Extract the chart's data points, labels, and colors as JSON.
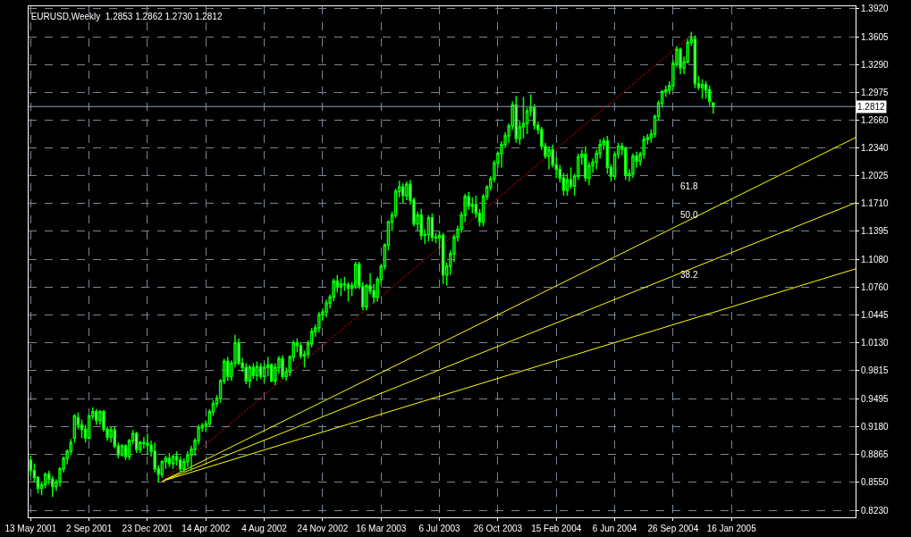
{
  "chart_data": {
    "type": "candlestick",
    "title": "EURUSD,Weekly  1.2853 1.2862 1.2730 1.2812",
    "color": "#00ff00",
    "x": [
      "2001-05-13",
      "2001-05-20",
      "2001-05-27",
      "2001-06-03",
      "2001-06-10",
      "2001-06-17",
      "2001-06-24",
      "2001-07-01",
      "2001-07-08",
      "2001-07-15",
      "2001-07-22",
      "2001-07-29",
      "2001-08-05",
      "2001-08-12",
      "2001-08-19",
      "2001-08-26",
      "2001-09-02",
      "2001-09-09",
      "2001-09-16",
      "2001-09-23",
      "2001-09-30",
      "2001-10-07",
      "2001-10-14",
      "2001-10-21",
      "2001-10-28",
      "2001-11-04",
      "2001-11-11",
      "2001-11-18",
      "2001-11-25",
      "2001-12-02",
      "2001-12-09",
      "2001-12-16",
      "2001-12-23",
      "2001-12-30",
      "2002-01-06",
      "2002-01-13",
      "2002-01-20",
      "2002-01-27",
      "2002-02-03",
      "2002-02-10",
      "2002-02-17",
      "2002-02-24",
      "2002-03-03",
      "2002-03-10",
      "2002-03-17",
      "2002-03-24",
      "2002-03-31",
      "2002-04-07",
      "2002-04-14",
      "2002-04-21",
      "2002-04-28",
      "2002-05-05",
      "2002-05-12",
      "2002-05-19",
      "2002-05-26",
      "2002-06-02",
      "2002-06-09",
      "2002-06-16",
      "2002-06-23",
      "2002-06-30",
      "2002-07-07",
      "2002-07-14",
      "2002-07-21",
      "2002-07-28",
      "2002-08-04",
      "2002-08-11",
      "2002-08-18",
      "2002-08-25",
      "2002-09-01",
      "2002-09-08",
      "2002-09-15",
      "2002-09-22",
      "2002-09-29",
      "2002-10-06",
      "2002-10-13",
      "2002-10-20",
      "2002-10-27",
      "2002-11-03",
      "2002-11-10",
      "2002-11-17",
      "2002-11-24",
      "2002-12-01",
      "2002-12-08",
      "2002-12-15",
      "2002-12-22",
      "2002-12-29",
      "2003-01-05",
      "2003-01-12",
      "2003-01-19",
      "2003-01-26",
      "2003-02-02",
      "2003-02-09",
      "2003-02-16",
      "2003-02-23",
      "2003-03-02",
      "2003-03-09",
      "2003-03-16",
      "2003-03-23",
      "2003-03-30",
      "2003-04-06",
      "2003-04-13",
      "2003-04-20",
      "2003-04-27",
      "2003-05-04",
      "2003-05-11",
      "2003-05-18",
      "2003-05-25",
      "2003-06-01",
      "2003-06-08",
      "2003-06-15",
      "2003-06-22",
      "2003-06-29",
      "2003-07-06",
      "2003-07-13",
      "2003-07-20",
      "2003-07-27",
      "2003-08-03",
      "2003-08-10",
      "2003-08-17",
      "2003-08-24",
      "2003-08-31",
      "2003-09-07",
      "2003-09-14",
      "2003-09-21",
      "2003-09-28",
      "2003-10-05",
      "2003-10-12",
      "2003-10-19",
      "2003-10-26",
      "2003-11-02",
      "2003-11-09",
      "2003-11-16",
      "2003-11-23",
      "2003-11-30",
      "2003-12-07",
      "2003-12-14",
      "2003-12-21",
      "2003-12-28",
      "2004-01-04",
      "2004-01-11",
      "2004-01-18",
      "2004-01-25",
      "2004-02-01",
      "2004-02-08",
      "2004-02-15",
      "2004-02-22",
      "2004-02-29",
      "2004-03-07",
      "2004-03-14",
      "2004-03-21",
      "2004-03-28",
      "2004-04-04",
      "2004-04-11",
      "2004-04-18",
      "2004-04-25",
      "2004-05-02",
      "2004-05-09",
      "2004-05-16",
      "2004-05-23",
      "2004-05-30",
      "2004-06-06",
      "2004-06-13",
      "2004-06-20",
      "2004-06-27",
      "2004-07-04",
      "2004-07-11",
      "2004-07-18",
      "2004-07-25",
      "2004-08-01",
      "2004-08-08",
      "2004-08-15",
      "2004-08-22",
      "2004-08-29",
      "2004-09-05",
      "2004-09-12",
      "2004-09-19",
      "2004-09-26",
      "2004-10-03",
      "2004-10-10",
      "2004-10-17",
      "2004-10-24",
      "2004-10-31",
      "2004-11-07",
      "2004-11-14",
      "2004-11-21",
      "2004-11-28",
      "2004-12-05",
      "2004-12-12"
    ],
    "ohlc": [
      [
        0.88,
        0.885,
        0.862,
        0.868
      ],
      [
        0.868,
        0.876,
        0.855,
        0.86
      ],
      [
        0.86,
        0.862,
        0.842,
        0.848
      ],
      [
        0.848,
        0.856,
        0.84,
        0.852
      ],
      [
        0.852,
        0.866,
        0.848,
        0.864
      ],
      [
        0.864,
        0.868,
        0.852,
        0.858
      ],
      [
        0.858,
        0.862,
        0.838,
        0.85
      ],
      [
        0.85,
        0.858,
        0.845,
        0.855
      ],
      [
        0.855,
        0.872,
        0.85,
        0.87
      ],
      [
        0.87,
        0.884,
        0.866,
        0.882
      ],
      [
        0.882,
        0.892,
        0.875,
        0.89
      ],
      [
        0.89,
        0.904,
        0.886,
        0.9
      ],
      [
        0.905,
        0.932,
        0.9,
        0.93
      ],
      [
        0.928,
        0.934,
        0.915,
        0.92
      ],
      [
        0.92,
        0.926,
        0.905,
        0.915
      ],
      [
        0.915,
        0.92,
        0.9,
        0.905
      ],
      [
        0.905,
        0.932,
        0.903,
        0.93
      ],
      [
        0.93,
        0.94,
        0.926,
        0.935
      ],
      [
        0.935,
        0.938,
        0.92,
        0.925
      ],
      [
        0.925,
        0.937,
        0.92,
        0.935
      ],
      [
        0.935,
        0.937,
        0.912,
        0.915
      ],
      [
        0.915,
        0.918,
        0.902,
        0.906
      ],
      [
        0.906,
        0.918,
        0.9,
        0.914
      ],
      [
        0.914,
        0.918,
        0.893,
        0.896
      ],
      [
        0.896,
        0.9,
        0.882,
        0.886
      ],
      [
        0.886,
        0.898,
        0.884,
        0.896
      ],
      [
        0.896,
        0.898,
        0.88,
        0.884
      ],
      [
        0.884,
        0.904,
        0.88,
        0.902
      ],
      [
        0.902,
        0.914,
        0.898,
        0.91
      ],
      [
        0.91,
        0.912,
        0.888,
        0.892
      ],
      [
        0.892,
        0.902,
        0.888,
        0.9
      ],
      [
        0.9,
        0.906,
        0.893,
        0.899
      ],
      [
        0.899,
        0.91,
        0.886,
        0.897
      ],
      [
        0.897,
        0.902,
        0.884,
        0.89
      ],
      [
        0.89,
        0.9,
        0.866,
        0.87
      ],
      [
        0.87,
        0.874,
        0.855,
        0.864
      ],
      [
        0.864,
        0.88,
        0.86,
        0.878
      ],
      [
        0.878,
        0.885,
        0.87,
        0.882
      ],
      [
        0.882,
        0.888,
        0.872,
        0.876
      ],
      [
        0.876,
        0.886,
        0.87,
        0.884
      ],
      [
        0.884,
        0.89,
        0.874,
        0.88
      ],
      [
        0.88,
        0.884,
        0.866,
        0.87
      ],
      [
        0.87,
        0.882,
        0.866,
        0.878
      ],
      [
        0.878,
        0.89,
        0.872,
        0.886
      ],
      [
        0.886,
        0.896,
        0.868,
        0.892
      ],
      [
        0.892,
        0.905,
        0.885,
        0.902
      ],
      [
        0.902,
        0.92,
        0.898,
        0.917
      ],
      [
        0.917,
        0.922,
        0.912,
        0.919
      ],
      [
        0.919,
        0.925,
        0.912,
        0.921
      ],
      [
        0.921,
        0.938,
        0.918,
        0.935
      ],
      [
        0.935,
        0.948,
        0.93,
        0.944
      ],
      [
        0.944,
        0.954,
        0.94,
        0.95
      ],
      [
        0.95,
        0.972,
        0.945,
        0.97
      ],
      [
        0.97,
        0.995,
        0.966,
        0.992
      ],
      [
        0.992,
        0.997,
        0.97,
        0.975
      ],
      [
        0.975,
        0.993,
        0.97,
        0.99
      ],
      [
        0.99,
        1.022,
        0.985,
        1.013
      ],
      [
        1.013,
        1.018,
        0.988,
        0.99
      ],
      [
        0.99,
        0.996,
        0.98,
        0.985
      ],
      [
        0.985,
        0.99,
        0.966,
        0.97
      ],
      [
        0.97,
        0.988,
        0.962,
        0.985
      ],
      [
        0.985,
        0.99,
        0.972,
        0.976
      ],
      [
        0.976,
        0.992,
        0.97,
        0.986
      ],
      [
        0.986,
        0.99,
        0.972,
        0.975
      ],
      [
        0.975,
        0.99,
        0.968,
        0.985
      ],
      [
        0.985,
        0.997,
        0.975,
        0.988
      ],
      [
        0.988,
        0.99,
        0.968,
        0.97
      ],
      [
        0.97,
        0.99,
        0.965,
        0.985
      ],
      [
        0.985,
        0.998,
        0.978,
        0.995
      ],
      [
        0.995,
        0.999,
        0.972,
        0.975
      ],
      [
        0.975,
        0.985,
        0.97,
        0.98
      ],
      [
        0.98,
        0.999,
        0.975,
        0.997
      ],
      [
        0.997,
        1.016,
        0.992,
        1.013
      ],
      [
        1.013,
        1.018,
        1.002,
        1.01
      ],
      [
        1.01,
        1.014,
        0.995,
        0.998
      ],
      [
        0.998,
        1.004,
        0.985,
        1.0
      ],
      [
        1.0,
        1.016,
        0.996,
        1.012
      ],
      [
        1.012,
        1.03,
        1.008,
        1.026
      ],
      [
        1.026,
        1.034,
        1.02,
        1.03
      ],
      [
        1.03,
        1.048,
        1.025,
        1.045
      ],
      [
        1.045,
        1.052,
        1.038,
        1.048
      ],
      [
        1.048,
        1.062,
        1.042,
        1.058
      ],
      [
        1.058,
        1.068,
        1.052,
        1.065
      ],
      [
        1.065,
        1.086,
        1.06,
        1.083
      ],
      [
        1.083,
        1.09,
        1.07,
        1.077
      ],
      [
        1.077,
        1.086,
        1.066,
        1.08
      ],
      [
        1.08,
        1.088,
        1.072,
        1.079
      ],
      [
        1.079,
        1.082,
        1.06,
        1.075
      ],
      [
        1.075,
        1.082,
        1.066,
        1.078
      ],
      [
        1.078,
        1.105,
        1.074,
        1.102
      ],
      [
        1.102,
        1.105,
        1.074,
        1.077
      ],
      [
        1.077,
        1.082,
        1.05,
        1.054
      ],
      [
        1.054,
        1.08,
        1.05,
        1.078
      ],
      [
        1.078,
        1.092,
        1.068,
        1.072
      ],
      [
        1.072,
        1.08,
        1.058,
        1.065
      ],
      [
        1.065,
        1.088,
        1.06,
        1.085
      ],
      [
        1.085,
        1.102,
        1.08,
        1.1
      ],
      [
        1.1,
        1.126,
        1.096,
        1.124
      ],
      [
        1.124,
        1.152,
        1.118,
        1.15
      ],
      [
        1.15,
        1.162,
        1.14,
        1.158
      ],
      [
        1.158,
        1.188,
        1.155,
        1.185
      ],
      [
        1.185,
        1.197,
        1.178,
        1.19
      ],
      [
        1.19,
        1.194,
        1.172,
        1.18
      ],
      [
        1.18,
        1.196,
        1.175,
        1.193
      ],
      [
        1.193,
        1.198,
        1.17,
        1.175
      ],
      [
        1.175,
        1.178,
        1.145,
        1.148
      ],
      [
        1.148,
        1.162,
        1.14,
        1.158
      ],
      [
        1.158,
        1.165,
        1.13,
        1.135
      ],
      [
        1.135,
        1.142,
        1.125,
        1.136
      ],
      [
        1.136,
        1.158,
        1.128,
        1.155
      ],
      [
        1.155,
        1.16,
        1.128,
        1.133
      ],
      [
        1.133,
        1.138,
        1.126,
        1.132
      ],
      [
        1.132,
        1.14,
        1.12,
        1.135
      ],
      [
        1.135,
        1.138,
        1.08,
        1.09
      ],
      [
        1.09,
        1.104,
        1.078,
        1.1
      ],
      [
        1.1,
        1.118,
        1.09,
        1.114
      ],
      [
        1.114,
        1.136,
        1.105,
        1.133
      ],
      [
        1.133,
        1.146,
        1.128,
        1.142
      ],
      [
        1.142,
        1.162,
        1.138,
        1.158
      ],
      [
        1.158,
        1.182,
        1.15,
        1.179
      ],
      [
        1.179,
        1.184,
        1.164,
        1.168
      ],
      [
        1.168,
        1.178,
        1.16,
        1.17
      ],
      [
        1.17,
        1.18,
        1.155,
        1.16
      ],
      [
        1.16,
        1.165,
        1.145,
        1.15
      ],
      [
        1.15,
        1.182,
        1.145,
        1.179
      ],
      [
        1.179,
        1.192,
        1.175,
        1.19
      ],
      [
        1.19,
        1.202,
        1.186,
        1.199
      ],
      [
        1.199,
        1.22,
        1.195,
        1.217
      ],
      [
        1.217,
        1.23,
        1.212,
        1.228
      ],
      [
        1.228,
        1.242,
        1.212,
        1.238
      ],
      [
        1.238,
        1.252,
        1.234,
        1.248
      ],
      [
        1.248,
        1.262,
        1.24,
        1.259
      ],
      [
        1.259,
        1.287,
        1.255,
        1.283
      ],
      [
        1.283,
        1.293,
        1.24,
        1.245
      ],
      [
        1.245,
        1.265,
        1.238,
        1.258
      ],
      [
        1.258,
        1.292,
        1.245,
        1.262
      ],
      [
        1.262,
        1.28,
        1.25,
        1.276
      ],
      [
        1.276,
        1.295,
        1.27,
        1.28
      ],
      [
        1.28,
        1.284,
        1.255,
        1.26
      ],
      [
        1.26,
        1.264,
        1.25,
        1.255
      ],
      [
        1.255,
        1.258,
        1.232,
        1.236
      ],
      [
        1.236,
        1.24,
        1.222,
        1.225
      ],
      [
        1.225,
        1.236,
        1.21,
        1.232
      ],
      [
        1.232,
        1.238,
        1.212,
        1.215
      ],
      [
        1.215,
        1.224,
        1.2,
        1.21
      ],
      [
        1.21,
        1.215,
        1.195,
        1.2
      ],
      [
        1.2,
        1.206,
        1.18,
        1.186
      ],
      [
        1.186,
        1.205,
        1.18,
        1.198
      ],
      [
        1.198,
        1.212,
        1.188,
        1.191
      ],
      [
        1.191,
        1.205,
        1.18,
        1.202
      ],
      [
        1.202,
        1.228,
        1.198,
        1.224
      ],
      [
        1.224,
        1.232,
        1.215,
        1.227
      ],
      [
        1.227,
        1.236,
        1.196,
        1.2
      ],
      [
        1.2,
        1.218,
        1.192,
        1.214
      ],
      [
        1.214,
        1.222,
        1.206,
        1.218
      ],
      [
        1.218,
        1.232,
        1.21,
        1.228
      ],
      [
        1.228,
        1.244,
        1.222,
        1.238
      ],
      [
        1.238,
        1.246,
        1.232,
        1.242
      ],
      [
        1.242,
        1.248,
        1.205,
        1.212
      ],
      [
        1.212,
        1.216,
        1.196,
        1.202
      ],
      [
        1.202,
        1.23,
        1.198,
        1.227
      ],
      [
        1.227,
        1.24,
        1.222,
        1.236
      ],
      [
        1.236,
        1.24,
        1.226,
        1.233
      ],
      [
        1.233,
        1.236,
        1.198,
        1.203
      ],
      [
        1.203,
        1.21,
        1.196,
        1.205
      ],
      [
        1.205,
        1.228,
        1.2,
        1.225
      ],
      [
        1.225,
        1.23,
        1.212,
        1.219
      ],
      [
        1.219,
        1.23,
        1.214,
        1.227
      ],
      [
        1.227,
        1.248,
        1.222,
        1.244
      ],
      [
        1.244,
        1.25,
        1.238,
        1.246
      ],
      [
        1.246,
        1.255,
        1.24,
        1.25
      ],
      [
        1.25,
        1.272,
        1.246,
        1.27
      ],
      [
        1.27,
        1.288,
        1.265,
        1.285
      ],
      [
        1.285,
        1.3,
        1.28,
        1.298
      ],
      [
        1.298,
        1.305,
        1.292,
        1.3
      ],
      [
        1.3,
        1.31,
        1.295,
        1.305
      ],
      [
        1.305,
        1.334,
        1.3,
        1.33
      ],
      [
        1.33,
        1.35,
        1.326,
        1.346
      ],
      [
        1.346,
        1.348,
        1.318,
        1.325
      ],
      [
        1.325,
        1.338,
        1.318,
        1.332
      ],
      [
        1.332,
        1.358,
        1.33,
        1.354
      ],
      [
        1.354,
        1.366,
        1.35,
        1.358
      ],
      [
        1.358,
        1.362,
        1.302,
        1.307
      ],
      [
        1.307,
        1.316,
        1.3,
        1.303
      ],
      [
        1.303,
        1.312,
        1.29,
        1.306
      ],
      [
        1.306,
        1.31,
        1.29,
        1.3
      ],
      [
        1.3,
        1.305,
        1.282,
        1.287
      ],
      [
        1.2853,
        1.2862,
        1.273,
        1.2812
      ]
    ],
    "series": [
      {
        "type": "line",
        "x": [
          "2002-01-20",
          "2005-09-11"
        ],
        "values": [
          0.856,
          1.246
        ],
        "color": "#ffff00"
      },
      {
        "type": "line",
        "x": [
          "2002-01-20",
          "2005-09-11"
        ],
        "values": [
          0.856,
          1.172
        ],
        "color": "#ffff00"
      },
      {
        "type": "line",
        "x": [
          "2002-01-20",
          "2005-09-11"
        ],
        "values": [
          0.856,
          1.097
        ],
        "color": "#ffff00"
      },
      {
        "type": "line",
        "x": [
          "2002-01-20",
          "2004-11-07"
        ],
        "values": [
          0.856,
          1.366
        ],
        "color": "#ff0000",
        "line_style": "dotted"
      }
    ],
    "xlim": [
      "2001-05-09",
      "2005-09-11"
    ],
    "xticks": [
      {
        "value": "2001-05-13",
        "label": "13 May 2001"
      },
      {
        "value": "2001-09-02",
        "label": "2 Sep 2001"
      },
      {
        "value": "2001-12-23",
        "label": "23 Dec 2001"
      },
      {
        "value": "2002-04-14",
        "label": "14 Apr 2002"
      },
      {
        "value": "2002-08-04",
        "label": "4 Aug 2002"
      },
      {
        "value": "2002-11-24",
        "label": "24 Nov 2002"
      },
      {
        "value": "2003-03-16",
        "label": "16 Mar 2003"
      },
      {
        "value": "2003-07-06",
        "label": "6 Jul 2003"
      },
      {
        "value": "2003-10-26",
        "label": "26 Oct 2003"
      },
      {
        "value": "2004-02-15",
        "label": "15 Feb 2004"
      },
      {
        "value": "2004-06-06",
        "label": "6 Jun 2004"
      },
      {
        "value": "2004-09-26",
        "label": "26 Sep 2004"
      },
      {
        "value": "2005-01-16",
        "label": "16 Jan 2005"
      }
    ],
    "ylim": [
      0.815,
      1.395
    ],
    "yticks": [
      {
        "value": 0.823,
        "label": "0.8230"
      },
      {
        "value": 0.855,
        "label": "0.8550"
      },
      {
        "value": 0.8865,
        "label": "0.8865"
      },
      {
        "value": 0.918,
        "label": "0.9180"
      },
      {
        "value": 0.9495,
        "label": "0.9495"
      },
      {
        "value": 0.9815,
        "label": "0.9815"
      },
      {
        "value": 1.013,
        "label": "1.0130"
      },
      {
        "value": 1.0445,
        "label": "1.0445"
      },
      {
        "value": 1.076,
        "label": "1.0760"
      },
      {
        "value": 1.108,
        "label": "1.1080"
      },
      {
        "value": 1.1395,
        "label": "1.1395"
      },
      {
        "value": 1.171,
        "label": "1.1710"
      },
      {
        "value": 1.2025,
        "label": "1.2025"
      },
      {
        "value": 1.234,
        "label": "1.2340"
      },
      {
        "value": 1.266,
        "label": "1.2660"
      },
      {
        "value": 1.2975,
        "label": "1.2975"
      },
      {
        "value": 1.329,
        "label": "1.3290"
      },
      {
        "value": 1.3605,
        "label": "1.3605"
      },
      {
        "value": 1.392,
        "label": "1.3920"
      }
    ],
    "grid": true,
    "ref_lines": [
      {
        "axis": "y",
        "value": 1.2812,
        "label": "1.2812",
        "color": "#8ea2b8"
      }
    ],
    "annotations": [
      "61.8",
      "50.0",
      "38.2"
    ]
  }
}
